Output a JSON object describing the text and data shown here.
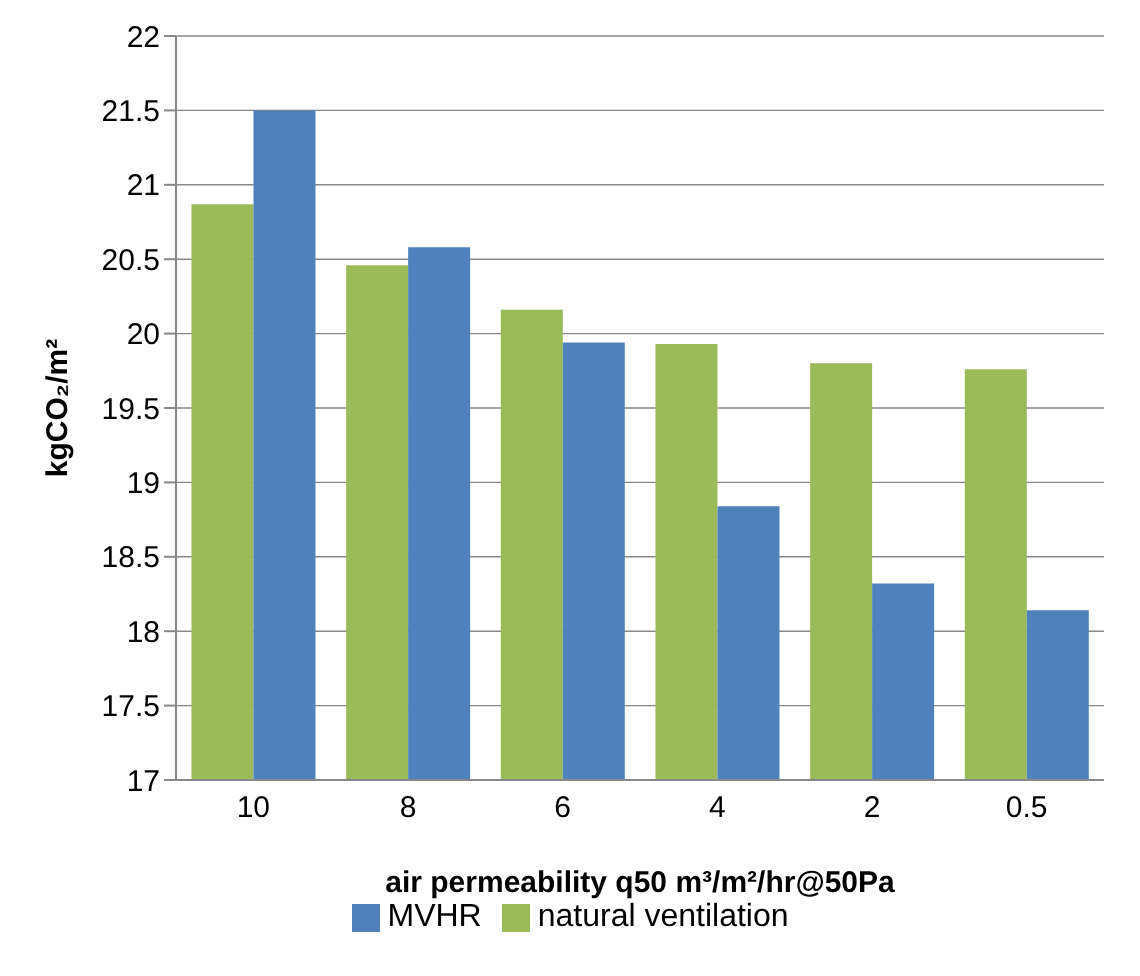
{
  "chart_data": {
    "type": "bar",
    "xlabel": "air permeability q50 m³/m²/hr@50Pa",
    "ylabel": "kgCO₂/m²",
    "categories": [
      "10",
      "8",
      "6",
      "4",
      "2",
      "0.5"
    ],
    "series": [
      {
        "name": "natural ventilation",
        "color": "#9bbb59",
        "values": [
          20.87,
          20.46,
          20.16,
          19.93,
          19.8,
          19.76
        ]
      },
      {
        "name": "MVHR",
        "color": "#4f81bd",
        "values": [
          21.5,
          20.58,
          19.94,
          18.84,
          18.32,
          18.14
        ]
      }
    ],
    "ylim": [
      17,
      22
    ],
    "yticks": [
      17,
      17.5,
      18,
      18.5,
      19,
      19.5,
      20,
      20.5,
      21,
      21.5,
      22
    ],
    "grid": "y",
    "legend": "bottom"
  }
}
